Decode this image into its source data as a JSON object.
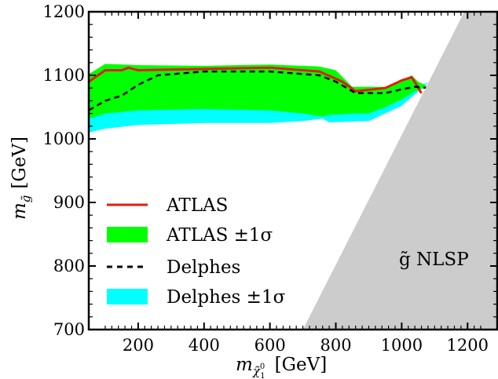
{
  "chart_data": {
    "type": "area",
    "xlabel_main": "m",
    "xlabel_sub": "χ̃",
    "xlabel_sub_super": "0",
    "xlabel_sub_sub": "1",
    "xlabel_unit": "[GeV]",
    "ylabel_main": "m",
    "ylabel_sub": "g̃",
    "ylabel_unit": "[GeV]",
    "xlim": [
      50,
      1290
    ],
    "ylim": [
      700,
      1200
    ],
    "xticks": [
      200,
      400,
      600,
      800,
      1000,
      1200
    ],
    "yticks": [
      700,
      800,
      900,
      1000,
      1100,
      1200
    ],
    "legend": {
      "placement": "left",
      "entries": [
        {
          "label": "ATLAS",
          "style": "line",
          "color": "#e8180c"
        },
        {
          "label": "ATLAS ±1σ",
          "style": "band",
          "color": "#00ff00"
        },
        {
          "label": "Delphes",
          "style": "dashed",
          "color": "#000000"
        },
        {
          "label": "Delphes ±1σ",
          "style": "band",
          "color": "#00ffff"
        }
      ]
    },
    "region_label": "g̃ NLSP",
    "series": [
      {
        "name": "Delphes ±1σ",
        "kind": "band",
        "color": "#00ffff",
        "upper": [
          [
            50,
            1037
          ],
          [
            150,
            1045
          ],
          [
            250,
            1050
          ],
          [
            400,
            1052
          ],
          [
            600,
            1052
          ],
          [
            800,
            1052
          ],
          [
            900,
            1056
          ],
          [
            1000,
            1072
          ],
          [
            1050,
            1085
          ],
          [
            1080,
            1088
          ]
        ],
        "lower": [
          [
            1080,
            1088
          ],
          [
            1000,
            1052
          ],
          [
            900,
            1028
          ],
          [
            780,
            1026
          ],
          [
            760,
            1032
          ],
          [
            700,
            1028
          ],
          [
            600,
            1025
          ],
          [
            400,
            1025
          ],
          [
            200,
            1022
          ],
          [
            100,
            1016
          ],
          [
            50,
            1010
          ]
        ]
      },
      {
        "name": "ATLAS ±1σ",
        "kind": "band",
        "color": "#00ff00",
        "upper": [
          [
            50,
            1102
          ],
          [
            100,
            1118
          ],
          [
            200,
            1116
          ],
          [
            400,
            1115
          ],
          [
            600,
            1117
          ],
          [
            750,
            1114
          ],
          [
            800,
            1108
          ],
          [
            850,
            1082
          ],
          [
            950,
            1082
          ],
          [
            1000,
            1090
          ],
          [
            1030,
            1100
          ],
          [
            1050,
            1090
          ],
          [
            1080,
            1082
          ]
        ],
        "lower": [
          [
            1080,
            1082
          ],
          [
            1040,
            1075
          ],
          [
            1000,
            1062
          ],
          [
            950,
            1050
          ],
          [
            900,
            1040
          ],
          [
            860,
            1040
          ],
          [
            780,
            1038
          ],
          [
            760,
            1035
          ],
          [
            700,
            1040
          ],
          [
            600,
            1045
          ],
          [
            400,
            1047
          ],
          [
            200,
            1045
          ],
          [
            100,
            1040
          ],
          [
            50,
            1032
          ]
        ]
      },
      {
        "name": "ATLAS",
        "kind": "line",
        "color": "#e8180c",
        "points": [
          [
            50,
            1090
          ],
          [
            100,
            1108
          ],
          [
            150,
            1108
          ],
          [
            170,
            1112
          ],
          [
            200,
            1108
          ],
          [
            400,
            1110
          ],
          [
            600,
            1112
          ],
          [
            750,
            1106
          ],
          [
            820,
            1090
          ],
          [
            860,
            1075
          ],
          [
            950,
            1080
          ],
          [
            1000,
            1092
          ],
          [
            1030,
            1097
          ],
          [
            1045,
            1085
          ],
          [
            1060,
            1072
          ]
        ]
      },
      {
        "name": "Delphes",
        "kind": "dashed",
        "color": "#000000",
        "points": [
          [
            50,
            1045
          ],
          [
            100,
            1060
          ],
          [
            150,
            1068
          ],
          [
            200,
            1085
          ],
          [
            260,
            1100
          ],
          [
            400,
            1106
          ],
          [
            600,
            1106
          ],
          [
            750,
            1100
          ],
          [
            800,
            1090
          ],
          [
            860,
            1072
          ],
          [
            950,
            1072
          ],
          [
            1000,
            1078
          ],
          [
            1040,
            1082
          ],
          [
            1080,
            1080
          ]
        ]
      }
    ],
    "excluded_region": {
      "color": "#cccccc",
      "points": [
        [
          700,
          700
        ],
        [
          1190,
          1200
        ],
        [
          1290,
          1200
        ],
        [
          1290,
          700
        ]
      ]
    }
  }
}
